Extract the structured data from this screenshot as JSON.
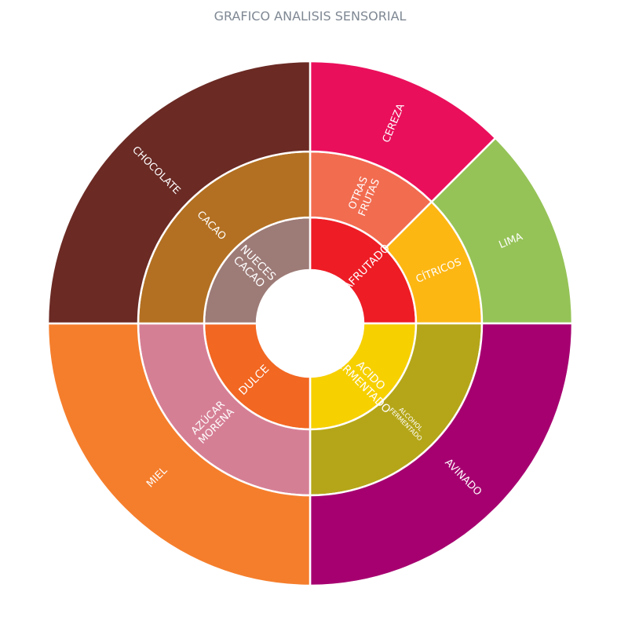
{
  "chart_data": {
    "type": "sunburst",
    "title": "GRAFICO ANALISIS SENSORIAL",
    "rings": [
      {
        "level": 1,
        "segments": [
          {
            "id": "afrutado",
            "label": "AFRUTADO",
            "lines": [
              "AFRUTADO"
            ],
            "start_deg": 0,
            "end_deg": 90,
            "color": "#ee1c25"
          },
          {
            "id": "acido-fermentado",
            "label": "ACIDO FERMENTADO",
            "lines": [
              "ACIDO",
              "FERMENTADO"
            ],
            "start_deg": 90,
            "end_deg": 180,
            "color": "#f7d000"
          },
          {
            "id": "dulce",
            "label": "DULCE",
            "lines": [
              "DULCE"
            ],
            "start_deg": 180,
            "end_deg": 270,
            "color": "#f26722"
          },
          {
            "id": "nueces-cacao",
            "label": "NUECES CACAO",
            "lines": [
              "NUECES",
              "CACAO"
            ],
            "start_deg": 270,
            "end_deg": 360,
            "color": "#9d7b77"
          }
        ]
      },
      {
        "level": 2,
        "segments": [
          {
            "id": "otras-frutas",
            "parent": "afrutado",
            "label": "OTRAS FRUTAS",
            "lines": [
              "OTRAS",
              "FRUTAS"
            ],
            "start_deg": 0,
            "end_deg": 45,
            "color": "#f26c50"
          },
          {
            "id": "citricos",
            "parent": "afrutado",
            "label": "CÍTRICOS",
            "lines": [
              "CÍTRICOS"
            ],
            "start_deg": 45,
            "end_deg": 90,
            "color": "#fdb713"
          },
          {
            "id": "alcohol-fermentado",
            "parent": "acido-fermentado",
            "label": "ALCOHOL FERMENTADO",
            "lines": [
              "ALCOHOL",
              "FERMENTADO"
            ],
            "start_deg": 90,
            "end_deg": 180,
            "color": "#b5a619"
          },
          {
            "id": "azucar-morena",
            "parent": "dulce",
            "label": "AZÚCAR MORENA",
            "lines": [
              "AZÚCAR",
              "MORENA"
            ],
            "start_deg": 180,
            "end_deg": 270,
            "color": "#d57f95"
          },
          {
            "id": "cacao",
            "parent": "nueces-cacao",
            "label": "CACAO",
            "lines": [
              "CACAO"
            ],
            "start_deg": 270,
            "end_deg": 360,
            "color": "#b37022"
          }
        ]
      },
      {
        "level": 3,
        "segments": [
          {
            "id": "cereza",
            "parent": "otras-frutas",
            "label": "CEREZA",
            "lines": [
              "CEREZA"
            ],
            "start_deg": 0,
            "end_deg": 45,
            "color": "#ea0f5b"
          },
          {
            "id": "lima",
            "parent": "citricos",
            "label": "LIMA",
            "lines": [
              "LIMA"
            ],
            "start_deg": 45,
            "end_deg": 90,
            "color": "#95c357"
          },
          {
            "id": "avinado",
            "parent": "alcohol-fermentado",
            "label": "AVINADO",
            "lines": [
              "AVINADO"
            ],
            "start_deg": 90,
            "end_deg": 180,
            "color": "#a60070"
          },
          {
            "id": "miel",
            "parent": "azucar-morena",
            "label": "MIEL",
            "lines": [
              "MIEL"
            ],
            "start_deg": 180,
            "end_deg": 270,
            "color": "#f57e2c"
          },
          {
            "id": "chocolate",
            "parent": "cacao",
            "label": "CHOCOLATE",
            "lines": [
              "CHOCOLATE"
            ],
            "start_deg": 270,
            "end_deg": 360,
            "color": "#6b2a24"
          }
        ]
      }
    ]
  }
}
